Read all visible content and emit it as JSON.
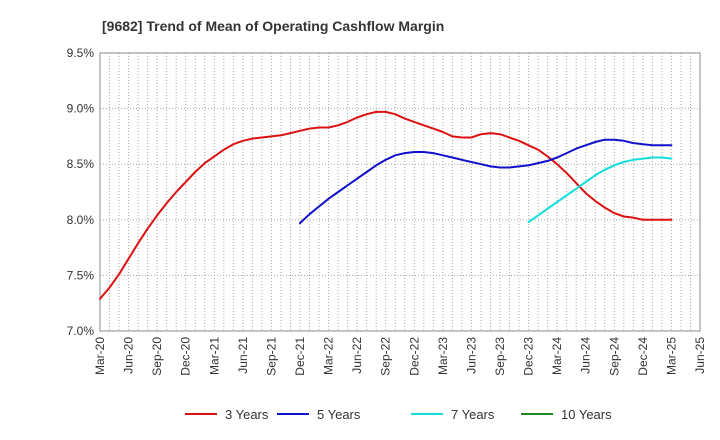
{
  "chart_data": {
    "type": "line",
    "title": "[9682]  Trend of Mean of Operating Cashflow Margin",
    "xlabel": "",
    "ylabel": "",
    "x_ticks": [
      "Mar-20",
      "Jun-20",
      "Sep-20",
      "Dec-20",
      "Mar-21",
      "Jun-21",
      "Sep-21",
      "Dec-21",
      "Mar-22",
      "Jun-22",
      "Sep-22",
      "Dec-22",
      "Mar-23",
      "Jun-23",
      "Sep-23",
      "Dec-23",
      "Mar-24",
      "Jun-24",
      "Sep-24",
      "Dec-24",
      "Mar-25",
      "Jun-25"
    ],
    "y_ticks": [
      "7.0%",
      "7.5%",
      "8.0%",
      "8.5%",
      "9.0%",
      "9.5%"
    ],
    "ylim": [
      7.0,
      9.5
    ],
    "grid": true,
    "legend_position": "bottom",
    "series": [
      {
        "name": "3 Years",
        "color": "#dd1111",
        "x": [
          "Mar-20",
          "Apr-20",
          "May-20",
          "Jun-20",
          "Jul-20",
          "Aug-20",
          "Sep-20",
          "Oct-20",
          "Nov-20",
          "Dec-20",
          "Jan-21",
          "Feb-21",
          "Mar-21",
          "Apr-21",
          "May-21",
          "Jun-21",
          "Jul-21",
          "Aug-21",
          "Sep-21",
          "Oct-21",
          "Nov-21",
          "Dec-21",
          "Jan-22",
          "Feb-22",
          "Mar-22",
          "Apr-22",
          "May-22",
          "Jun-22",
          "Jul-22",
          "Aug-22",
          "Sep-22",
          "Oct-22",
          "Nov-22",
          "Dec-22",
          "Jan-23",
          "Feb-23",
          "Mar-23",
          "Apr-23",
          "May-23",
          "Jun-23",
          "Jul-23",
          "Aug-23",
          "Sep-23",
          "Oct-23",
          "Nov-23",
          "Dec-23",
          "Jan-24",
          "Feb-24",
          "Mar-24",
          "Apr-24",
          "May-24",
          "Jun-24",
          "Jul-24",
          "Aug-24",
          "Sep-24",
          "Oct-24",
          "Nov-24",
          "Dec-24",
          "Jan-25",
          "Feb-25",
          "Mar-25"
        ],
        "values": [
          7.29,
          7.39,
          7.51,
          7.65,
          7.79,
          7.92,
          8.04,
          8.15,
          8.25,
          8.34,
          8.43,
          8.51,
          8.57,
          8.63,
          8.68,
          8.71,
          8.73,
          8.74,
          8.75,
          8.76,
          8.78,
          8.8,
          8.82,
          8.83,
          8.83,
          8.85,
          8.88,
          8.92,
          8.95,
          8.97,
          8.97,
          8.95,
          8.91,
          8.88,
          8.85,
          8.82,
          8.79,
          8.75,
          8.74,
          8.74,
          8.77,
          8.78,
          8.77,
          8.74,
          8.71,
          8.67,
          8.63,
          8.57,
          8.5,
          8.42,
          8.33,
          8.24,
          8.17,
          8.11,
          8.06,
          8.03,
          8.02,
          8.0,
          8.0,
          8.0,
          8.0
        ]
      },
      {
        "name": "5 Years",
        "color": "#1111cc",
        "x": [
          "Mar-20",
          "Apr-20",
          "May-20",
          "Jun-20",
          "Jul-20",
          "Aug-20",
          "Sep-20",
          "Oct-20",
          "Nov-20",
          "Dec-20",
          "Jan-21",
          "Feb-21",
          "Mar-21",
          "Apr-21",
          "May-21",
          "Jun-21",
          "Jul-21",
          "Aug-21",
          "Sep-21",
          "Oct-21",
          "Nov-21",
          "Dec-21",
          "Jan-22",
          "Feb-22",
          "Mar-22",
          "Apr-22",
          "May-22",
          "Jun-22",
          "Jul-22",
          "Aug-22",
          "Sep-22",
          "Oct-22",
          "Nov-22",
          "Dec-22",
          "Jan-23",
          "Feb-23",
          "Mar-23",
          "Apr-23",
          "May-23",
          "Jun-23",
          "Jul-23",
          "Aug-23",
          "Sep-23",
          "Oct-23",
          "Nov-23",
          "Dec-23",
          "Jan-24",
          "Feb-24",
          "Mar-24",
          "Apr-24",
          "May-24",
          "Jun-24",
          "Jul-24",
          "Aug-24",
          "Sep-24",
          "Oct-24",
          "Nov-24",
          "Dec-24",
          "Jan-25",
          "Feb-25",
          "Mar-25"
        ],
        "values": [
          null,
          null,
          null,
          null,
          null,
          null,
          null,
          null,
          null,
          null,
          null,
          null,
          null,
          null,
          null,
          null,
          null,
          null,
          null,
          null,
          null,
          7.97,
          8.05,
          8.12,
          8.19,
          8.25,
          8.31,
          8.37,
          8.43,
          8.49,
          8.54,
          8.58,
          8.6,
          8.61,
          8.61,
          8.6,
          8.58,
          8.56,
          8.54,
          8.52,
          8.5,
          8.48,
          8.47,
          8.47,
          8.48,
          8.49,
          8.51,
          8.53,
          8.56,
          8.6,
          8.64,
          8.67,
          8.7,
          8.72,
          8.72,
          8.71,
          8.69,
          8.68,
          8.67,
          8.67,
          8.67
        ]
      },
      {
        "name": "7 Years",
        "color": "#11dddd",
        "x": [
          "Mar-20",
          "Apr-20",
          "May-20",
          "Jun-20",
          "Jul-20",
          "Aug-20",
          "Sep-20",
          "Oct-20",
          "Nov-20",
          "Dec-20",
          "Jan-21",
          "Feb-21",
          "Mar-21",
          "Apr-21",
          "May-21",
          "Jun-21",
          "Jul-21",
          "Aug-21",
          "Sep-21",
          "Oct-21",
          "Nov-21",
          "Dec-21",
          "Jan-22",
          "Feb-22",
          "Mar-22",
          "Apr-22",
          "May-22",
          "Jun-22",
          "Jul-22",
          "Aug-22",
          "Sep-22",
          "Oct-22",
          "Nov-22",
          "Dec-22",
          "Jan-23",
          "Feb-23",
          "Mar-23",
          "Apr-23",
          "May-23",
          "Jun-23",
          "Jul-23",
          "Aug-23",
          "Sep-23",
          "Oct-23",
          "Nov-23",
          "Dec-23",
          "Jan-24",
          "Feb-24",
          "Mar-24",
          "Apr-24",
          "May-24",
          "Jun-24",
          "Jul-24",
          "Aug-24",
          "Sep-24",
          "Oct-24",
          "Nov-24",
          "Dec-24",
          "Jan-25",
          "Feb-25",
          "Mar-25"
        ],
        "values": [
          null,
          null,
          null,
          null,
          null,
          null,
          null,
          null,
          null,
          null,
          null,
          null,
          null,
          null,
          null,
          null,
          null,
          null,
          null,
          null,
          null,
          null,
          null,
          null,
          null,
          null,
          null,
          null,
          null,
          null,
          null,
          null,
          null,
          null,
          null,
          null,
          null,
          null,
          null,
          null,
          null,
          null,
          null,
          null,
          null,
          7.98,
          8.04,
          8.1,
          8.16,
          8.22,
          8.28,
          8.34,
          8.4,
          8.45,
          8.49,
          8.52,
          8.54,
          8.55,
          8.56,
          8.56,
          8.55
        ]
      },
      {
        "name": "10 Years",
        "color": "#228822",
        "x": [],
        "values": []
      }
    ]
  }
}
